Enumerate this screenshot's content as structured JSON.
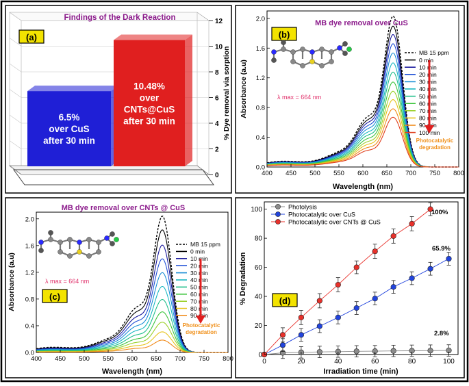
{
  "panels": {
    "a": {
      "label": "(a)",
      "title": "Findings of the Dark Reaction",
      "ylabel": "% Dye removal via sorption",
      "ymax": 12,
      "yticks": [
        "0",
        "2",
        "4",
        "6",
        "8",
        "10",
        "12"
      ],
      "bars": [
        {
          "name": "CuS",
          "value": 6.5,
          "color": "#1f1fd6",
          "lines": [
            "6.5%",
            "over CuS",
            "after 30 min"
          ]
        },
        {
          "name": "CNTs@CuS",
          "value": 10.48,
          "color": "#e01f1f",
          "lines": [
            "10.48%",
            "over",
            "CNTs@CuS",
            "after 30 min"
          ]
        }
      ]
    },
    "b": {
      "label": "(b)",
      "title": "MB dye removal over CuS",
      "lambda": "λ max = 664 nm",
      "xlabel": "Wavelength (nm)",
      "ylabel": "Absorbance (a.u)",
      "xticks": [
        "400",
        "450",
        "500",
        "550",
        "600",
        "650",
        "700",
        "750",
        "800"
      ],
      "yticks": [
        "0.0",
        "0.4",
        "0.8",
        "1.2",
        "1.6",
        "2.0"
      ],
      "arrow_text": [
        "Photocatalytic",
        "degradation"
      ]
    },
    "c": {
      "label": "(c)",
      "title": "MB dye removal over CNTs @ CuS",
      "lambda": "λ max = 664 nm",
      "xlabel": "Wavelength (nm)",
      "ylabel": "Absorbance (a.u)",
      "xticks": [
        "400",
        "450",
        "500",
        "550",
        "600",
        "650",
        "700",
        "750",
        "800"
      ],
      "yticks": [
        "0.0",
        "0.4",
        "0.8",
        "1.2",
        "1.6",
        "2.0"
      ],
      "arrow_text": [
        "Photocatalytic",
        "degradation"
      ]
    },
    "d": {
      "label": "(d)",
      "xlabel": "Irradiation time (min)",
      "ylabel": "% Degradation",
      "xticks": [
        "0",
        "20",
        "40",
        "60",
        "80",
        "100"
      ],
      "yticks": [
        "0",
        "20",
        "40",
        "60",
        "80",
        "100"
      ],
      "annotations": [
        "100%",
        "65.9%",
        "2.8%"
      ]
    }
  },
  "chart_data": [
    {
      "type": "bar",
      "title": "Findings of the Dark Reaction",
      "categories": [
        "CuS",
        "CNTs@CuS"
      ],
      "values": [
        6.5,
        10.48
      ],
      "ylabel": "% Dye removal via sorption",
      "ylim": [
        0,
        12
      ]
    },
    {
      "type": "line",
      "title": "MB dye removal over CuS",
      "xlabel": "Wavelength (nm)",
      "ylabel": "Absorbance (a.u)",
      "xlim": [
        400,
        800
      ],
      "ylim": [
        0,
        2.1
      ],
      "peak_nm": 664,
      "shoulder_nm": 612,
      "series": [
        {
          "name": "MB 15 ppm",
          "color": "#000000",
          "dashed": true,
          "peak": 1.97
        },
        {
          "name": "0 min",
          "color": "#000000",
          "peak": 1.84
        },
        {
          "name": "10 min",
          "color": "#1a1a9e",
          "peak": 1.73
        },
        {
          "name": "20 min",
          "color": "#1e4fd6",
          "peak": 1.61
        },
        {
          "name": "30 min",
          "color": "#1a8fd6",
          "peak": 1.49
        },
        {
          "name": "40 min",
          "color": "#18b8c2",
          "peak": 1.36
        },
        {
          "name": "50 min",
          "color": "#1ebf8a",
          "peak": 1.24
        },
        {
          "name": "60 min",
          "color": "#3cc43c",
          "peak": 1.11
        },
        {
          "name": "70 min",
          "color": "#9bd02a",
          "peak": 0.99
        },
        {
          "name": "80 min",
          "color": "#e6c31a",
          "peak": 0.88
        },
        {
          "name": "90 min",
          "color": "#f08a1a",
          "peak": 0.76
        },
        {
          "name": "100 min",
          "color": "#e04020",
          "peak": 0.65
        }
      ]
    },
    {
      "type": "line",
      "title": "MB dye removal over CNTs @ CuS",
      "xlabel": "Wavelength (nm)",
      "ylabel": "Absorbance (a.u)",
      "xlim": [
        400,
        800
      ],
      "ylim": [
        0,
        2.1
      ],
      "peak_nm": 664,
      "shoulder_nm": 612,
      "series": [
        {
          "name": "MB 15 ppm",
          "color": "#000000",
          "dashed": true,
          "peak": 1.98
        },
        {
          "name": "0 min",
          "color": "#000000",
          "peak": 1.78
        },
        {
          "name": "10 min",
          "color": "#1a1a9e",
          "peak": 1.56
        },
        {
          "name": "20 min",
          "color": "#1e4fd6",
          "peak": 1.36
        },
        {
          "name": "30 min",
          "color": "#1a8fd6",
          "peak": 1.16
        },
        {
          "name": "40 min",
          "color": "#18b8c2",
          "peak": 0.96
        },
        {
          "name": "50 min",
          "color": "#1ebf8a",
          "peak": 0.77
        },
        {
          "name": "60 min",
          "color": "#3cc43c",
          "peak": 0.59
        },
        {
          "name": "70 min",
          "color": "#9bd02a",
          "peak": 0.44
        },
        {
          "name": "80 min",
          "color": "#e6c31a",
          "peak": 0.3
        },
        {
          "name": "90 min",
          "color": "#f08a1a",
          "peak": 0.18
        }
      ]
    },
    {
      "type": "line",
      "xlabel": "Irradiation time (min)",
      "ylabel": "% Degradation",
      "xlim": [
        0,
        105
      ],
      "ylim": [
        0,
        105
      ],
      "x": [
        0,
        10,
        20,
        30,
        40,
        50,
        60,
        70,
        80,
        90,
        100
      ],
      "series": [
        {
          "name": "Photolysis",
          "color": "#8c8c8c",
          "values": [
            0,
            1.2,
            1.5,
            1.8,
            2.0,
            2.2,
            2.3,
            2.5,
            2.6,
            2.7,
            2.8
          ],
          "errors": [
            0,
            2.5,
            2.5,
            2.5,
            2.5,
            2.5,
            2.5,
            2.5,
            2.5,
            2.5,
            2.5
          ]
        },
        {
          "name": "Photocatalytic over CuS",
          "color": "#2244dd",
          "values": [
            0,
            6.5,
            13.5,
            19.5,
            25.5,
            32,
            38.5,
            46.5,
            52.5,
            59,
            65.9
          ],
          "errors": [
            0,
            3,
            3,
            3,
            3,
            3,
            3,
            3,
            3,
            3,
            3
          ]
        },
        {
          "name": "Photocatalytic over CNTs @ CuS",
          "color": "#e8302a",
          "values": [
            0,
            13.5,
            25.5,
            37,
            48,
            60,
            71,
            81.5,
            90,
            100,
            null
          ],
          "errors": [
            0,
            3.5,
            3.5,
            3.5,
            3.5,
            3,
            3.5,
            3.5,
            3.5,
            3,
            0
          ]
        }
      ]
    }
  ]
}
